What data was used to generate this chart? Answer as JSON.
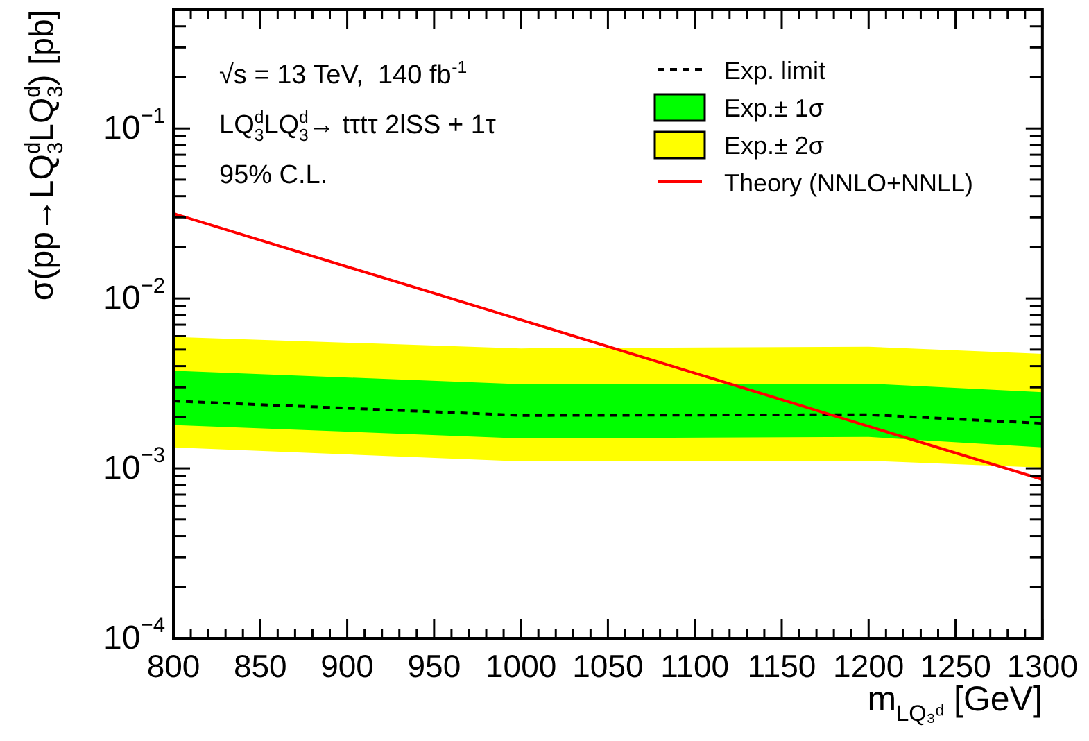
{
  "chart_data": {
    "type": "line",
    "xlabel": "m$_{LQ₃ᵈ}$ [GeV]",
    "ylabel": "σ(pp→LQ$_{3}$$^{d}$LQ$_{3}$$^{d}$) [pb]",
    "x": [
      800,
      1000,
      1200,
      1300
    ],
    "series": [
      {
        "name": "Exp. limit",
        "color": "#000000",
        "line_style": "dashed",
        "values": [
          0.00249,
          0.00205,
          0.00207,
          0.00184
        ]
      },
      {
        "name": "Exp.± 1σ",
        "type": "area",
        "color": "#00ff00",
        "values": [
          null,
          null,
          null,
          null
        ],
        "lower": [
          0.0018,
          0.0015,
          0.00153,
          0.00133
        ],
        "upper": [
          0.00375,
          0.00313,
          0.00315,
          0.00281
        ]
      },
      {
        "name": "Exp.± 2σ",
        "type": "area",
        "color": "#ffff00",
        "values": [
          null,
          null,
          null,
          null
        ],
        "lower": [
          0.00133,
          0.0011,
          0.00111,
          0.00101
        ],
        "upper": [
          0.00594,
          0.00508,
          0.0052,
          0.00472
        ]
      },
      {
        "name": "Theory (NNLO+NNLL)",
        "color": "#ff0000",
        "line_style": "solid",
        "x": [
          800,
          1300
        ],
        "values": [
          0.0316,
          0.00086
        ]
      }
    ],
    "log": "y",
    "xlim": [
      800,
      1300
    ],
    "ylim": [
      0.0001,
      0.5
    ],
    "grid": false,
    "marker": "none",
    "legend": "top right",
    "xticks": [
      800,
      {
        "value": 810,
        "label": null
      },
      {
        "value": 820,
        "label": null
      },
      {
        "value": 830,
        "label": null
      },
      {
        "value": 840,
        "label": null
      },
      850,
      {
        "value": 860,
        "label": null
      },
      {
        "value": 870,
        "label": null
      },
      {
        "value": 880,
        "label": null
      },
      {
        "value": 890,
        "label": null
      },
      900,
      {
        "value": 910,
        "label": null
      },
      {
        "value": 920,
        "label": null
      },
      {
        "value": 930,
        "label": null
      },
      {
        "value": 940,
        "label": null
      },
      950,
      {
        "value": 960,
        "label": null
      },
      {
        "value": 970,
        "label": null
      },
      {
        "value": 980,
        "label": null
      },
      {
        "value": 990,
        "label": null
      },
      1000,
      {
        "value": 1010,
        "label": null
      },
      {
        "value": 1020,
        "label": null
      },
      {
        "value": 1030,
        "label": null
      },
      {
        "value": 1040,
        "label": null
      },
      1050,
      {
        "value": 1060,
        "label": null
      },
      {
        "value": 1070,
        "label": null
      },
      {
        "value": 1080,
        "label": null
      },
      {
        "value": 1090,
        "label": null
      },
      1100,
      {
        "value": 1110,
        "label": null
      },
      {
        "value": 1120,
        "label": null
      },
      {
        "value": 1130,
        "label": null
      },
      {
        "value": 1140,
        "label": null
      },
      1150,
      {
        "value": 1160,
        "label": null
      },
      {
        "value": 1170,
        "label": null
      },
      {
        "value": 1180,
        "label": null
      },
      {
        "value": 1190,
        "label": null
      },
      1200,
      {
        "value": 1210,
        "label": null
      },
      {
        "value": 1220,
        "label": null
      },
      {
        "value": 1230,
        "label": null
      },
      {
        "value": 1240,
        "label": null
      },
      1250,
      {
        "value": 1260,
        "label": null
      },
      {
        "value": 1270,
        "label": null
      },
      {
        "value": 1280,
        "label": null
      },
      {
        "value": 1290,
        "label": null
      },
      1300
    ],
    "yticks": [
      {
        "value": 0.0001,
        "label": "10$^{−4}$"
      },
      {
        "value": 0.0002,
        "label": null
      },
      {
        "value": 0.0003,
        "label": null
      },
      {
        "value": 0.0004,
        "label": null
      },
      {
        "value": 0.0005,
        "label": null
      },
      {
        "value": 0.0006,
        "label": null
      },
      {
        "value": 0.0007,
        "label": null
      },
      {
        "value": 0.0008,
        "label": null
      },
      {
        "value": 0.0009,
        "label": null
      },
      {
        "value": 0.001,
        "label": "10$^{−3}$"
      },
      {
        "value": 0.002,
        "label": null
      },
      {
        "value": 0.003,
        "label": null
      },
      {
        "value": 0.004,
        "label": null
      },
      {
        "value": 0.005,
        "label": null
      },
      {
        "value": 0.006,
        "label": null
      },
      {
        "value": 0.007,
        "label": null
      },
      {
        "value": 0.008,
        "label": null
      },
      {
        "value": 0.009,
        "label": null
      },
      {
        "value": 0.01,
        "label": "10$^{−2}$"
      },
      {
        "value": 0.02,
        "label": null
      },
      {
        "value": 0.03,
        "label": null
      },
      {
        "value": 0.04,
        "label": null
      },
      {
        "value": 0.05,
        "label": null
      },
      {
        "value": 0.06,
        "label": null
      },
      {
        "value": 0.07,
        "label": null
      },
      {
        "value": 0.08,
        "label": null
      },
      {
        "value": 0.09,
        "label": null
      },
      {
        "value": 0.1,
        "label": "10$^{−1}$"
      },
      {
        "value": 0.2,
        "label": null
      },
      {
        "value": 0.3,
        "label": null
      },
      {
        "value": 0.4,
        "label": null
      },
      {
        "value": 0.5,
        "label": null
      }
    ],
    "annotations": [
      "√s = 13 TeV,  140 fb$^{-1}$",
      "LQ$_{3}$$^{d}$LQ$_{3}$$^{d}$→ tτtτ 2lSS + 1τ",
      "95% C.L."
    ]
  }
}
